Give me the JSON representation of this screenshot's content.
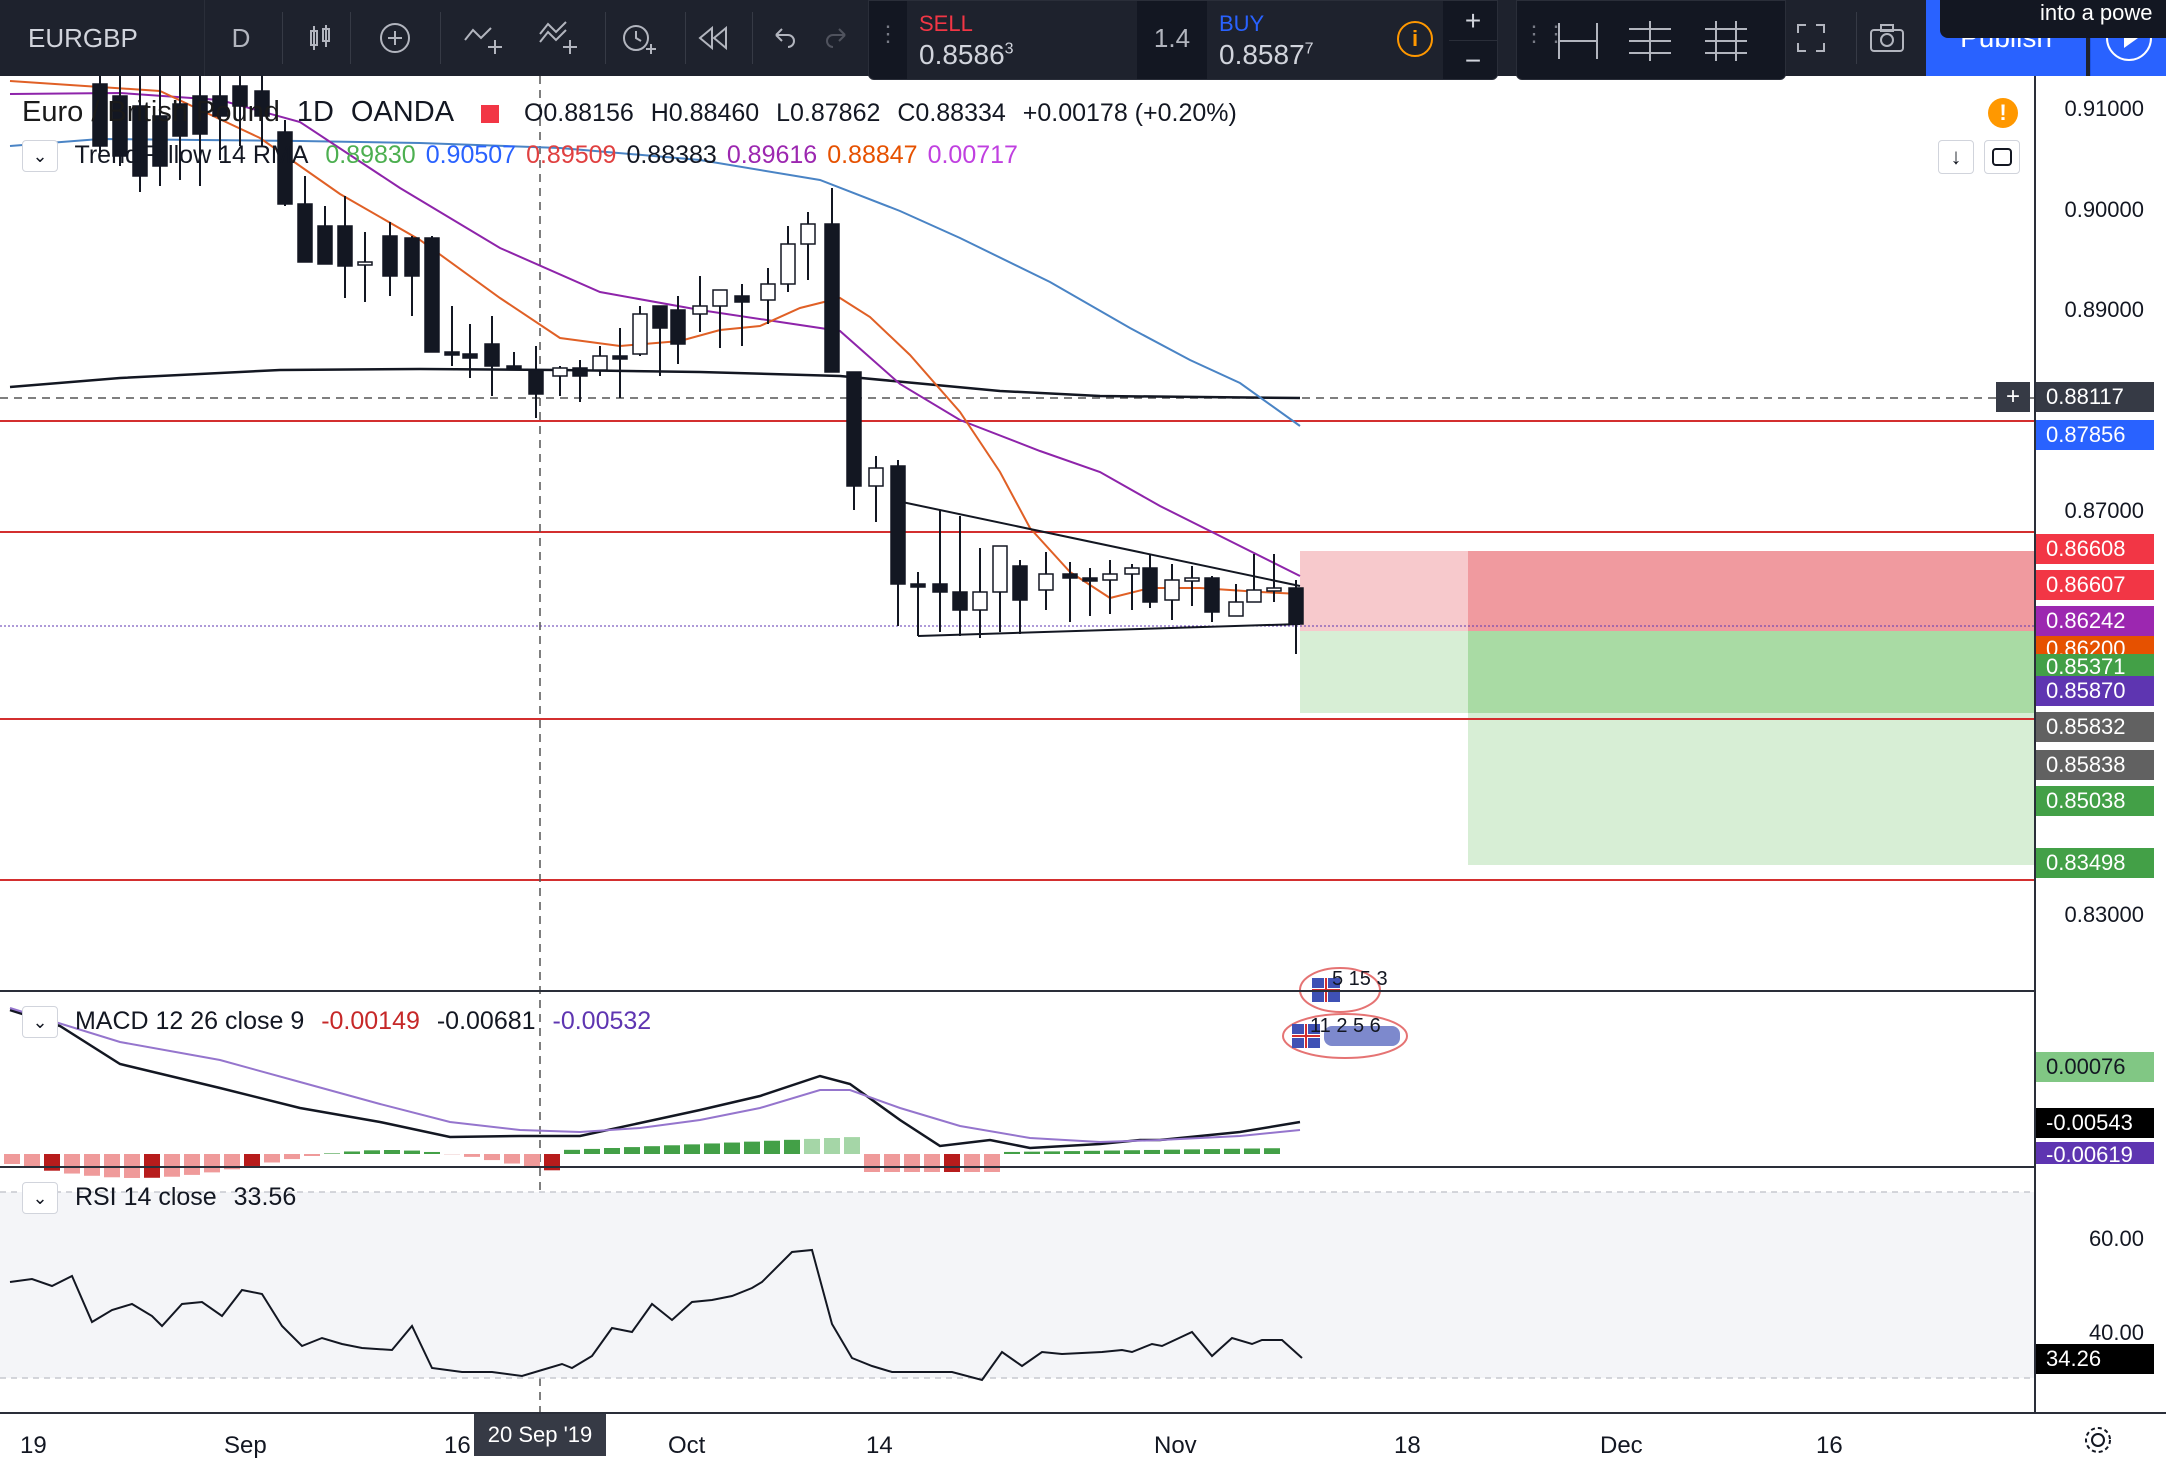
{
  "toolbar": {
    "symbol": "EURGBP",
    "interval": "D",
    "sell_label": "SELL",
    "sell_price": "0.8586",
    "sell_sup": "3",
    "spread": "1.4",
    "buy_label": "BUY",
    "buy_price": "0.8587",
    "buy_sup": "7",
    "publish_label": "Publish",
    "tooltip_text": "into a powe"
  },
  "main": {
    "title": "Euro / British Pound",
    "timeframe": "1D",
    "source": "OANDA",
    "ohlc": {
      "o": "O0.88156",
      "h": "H0.88460",
      "l": "L0.87862",
      "c": "C0.88334",
      "chg": "+0.00178 (+0.20%)"
    },
    "indicator_name": "TrendFollow 14 RMA",
    "indicator_values": [
      {
        "v": "0.89830",
        "color": "#4caf50"
      },
      {
        "v": "0.90507",
        "color": "#2962ff"
      },
      {
        "v": "0.89509",
        "color": "#e04040"
      },
      {
        "v": "0.88383",
        "color": "#131722"
      },
      {
        "v": "0.89616",
        "color": "#9c27b0"
      },
      {
        "v": "0.88847",
        "color": "#e65100"
      },
      {
        "v": "0.00717",
        "color": "#c040e0"
      }
    ],
    "events_top": "5 15 3",
    "events_bottom": "11 2 5 6"
  },
  "price_scale": {
    "ticks": [
      "0.91000",
      "0.90000",
      "0.89000",
      "0.87000",
      "0.83000"
    ],
    "boxes": [
      {
        "v": "0.88117",
        "bg": "#363a45"
      },
      {
        "v": "0.87856",
        "bg": "#2962ff"
      },
      {
        "v": "0.86608",
        "bg": "#f23645"
      },
      {
        "v": "0.86607",
        "bg": "#f23645"
      },
      {
        "v": "0.86242",
        "bg": "#9c27b0"
      },
      {
        "v": "0.86200",
        "bg": "#e65100"
      },
      {
        "v": "0.85371",
        "bg": "#43a047"
      },
      {
        "v": "0.85870",
        "bg": "#5e35b1"
      },
      {
        "v": "0.85832",
        "bg": "#616161"
      },
      {
        "v": "0.85838",
        "bg": "#616161"
      },
      {
        "v": "0.85038",
        "bg": "#43a047"
      },
      {
        "v": "0.83498",
        "bg": "#43a047"
      }
    ]
  },
  "macd": {
    "title": "MACD 12 26 close 9",
    "v1": "-0.00149",
    "v2": "-0.00681",
    "v3": "-0.00532",
    "scale_boxes": [
      {
        "v": "0.00076",
        "bg": "#81c784",
        "fg": "#131722"
      },
      {
        "v": "-0.00543",
        "bg": "#000000",
        "fg": "#ffffff"
      },
      {
        "v": "-0.00619",
        "bg": "#5e35b1",
        "fg": "#ffffff"
      }
    ]
  },
  "rsi": {
    "title": "RSI 14 close",
    "value": "33.56",
    "ticks": [
      "60.00",
      "40.00"
    ],
    "box": "34.26"
  },
  "time_axis": {
    "labels": [
      "19",
      "Sep",
      "16",
      "Oct",
      "14",
      "Nov",
      "18",
      "Dec",
      "16"
    ],
    "crosshair_label": "20 Sep '19"
  }
}
